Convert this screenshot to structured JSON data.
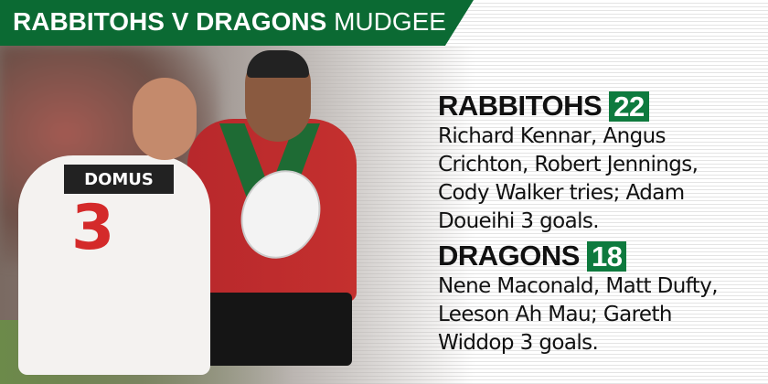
{
  "header": {
    "title_bold": "RABBITOHS V DRAGONS",
    "title_light": "MUDGEE"
  },
  "colors": {
    "banner": "#0b6a33",
    "score_box": "#0e7a3e"
  },
  "photo": {
    "sponsor": "DOMUS",
    "jersey_number": "3"
  },
  "results": [
    {
      "team": "RABBITOHS",
      "score": "22",
      "lines": [
        "Richard Kennar, Angus",
        "Crichton, Robert Jennings,",
        "Cody Walker tries; Adam",
        "Doueihi 3 goals."
      ]
    },
    {
      "team": "DRAGONS",
      "score": "18",
      "lines": [
        "Nene Maconald, Matt Dufty,",
        "Leeson Ah Mau; Gareth",
        "Widdop 3 goals."
      ]
    }
  ]
}
